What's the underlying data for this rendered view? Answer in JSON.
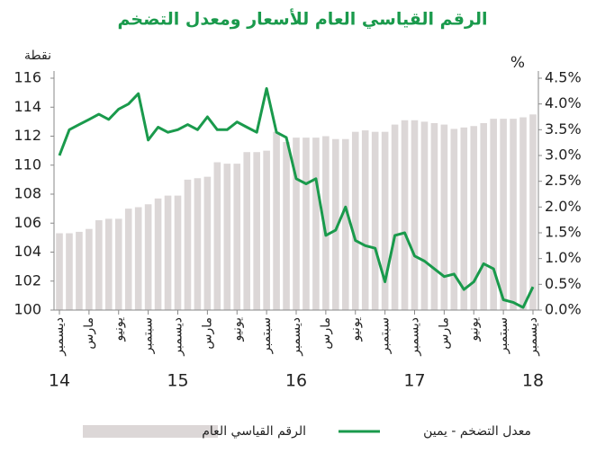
{
  "chart_data": {
    "type": "combo",
    "title": "الرقم القياسي العام للأسعار ومعدل التضخم",
    "y_axis_label": "نقطة",
    "y2_axis_label": "%",
    "categories": [
      "ديسمبر",
      null,
      null,
      "مارس",
      null,
      null,
      "يونيو",
      null,
      null,
      "سبتمبر",
      null,
      null,
      "ديسمبر",
      null,
      null,
      "مارس",
      null,
      null,
      "يونيو",
      null,
      null,
      "سبتمبر",
      null,
      null,
      "ديسمبر",
      null,
      null,
      "مارس",
      null,
      null,
      "يونيو",
      null,
      null,
      "سبتمبر",
      null,
      null,
      "ديسمبر",
      null,
      null,
      "مارس",
      null,
      null,
      "يونيو",
      null,
      null,
      "سبتمبر",
      null,
      null,
      "ديسمبر"
    ],
    "year_labels": [
      "14",
      null,
      null,
      null,
      null,
      null,
      null,
      null,
      null,
      null,
      null,
      null,
      "15",
      null,
      null,
      null,
      null,
      null,
      null,
      null,
      null,
      null,
      null,
      null,
      "16",
      null,
      null,
      null,
      null,
      null,
      null,
      null,
      null,
      null,
      null,
      null,
      "17",
      null,
      null,
      null,
      null,
      null,
      null,
      null,
      null,
      null,
      null,
      null,
      "18"
    ],
    "series": [
      {
        "name": "الرقم القياسي العام",
        "type": "bar",
        "color": "#dcd7d7",
        "values": [
          105.3,
          105.3,
          105.4,
          105.6,
          106.2,
          106.3,
          106.3,
          107.0,
          107.1,
          107.3,
          107.7,
          107.9,
          107.9,
          109.0,
          109.1,
          109.2,
          110.2,
          110.1,
          110.1,
          110.9,
          110.9,
          111.0,
          112.3,
          111.6,
          111.9,
          111.9,
          111.9,
          112.0,
          111.8,
          111.8,
          112.3,
          112.4,
          112.3,
          112.3,
          112.8,
          113.1,
          113.1,
          113.0,
          112.9,
          112.8,
          112.5,
          112.6,
          112.7,
          112.9,
          113.2,
          113.2,
          113.2,
          113.3,
          113.5
        ]
      },
      {
        "name": "معدل التضخم - يمين",
        "type": "line",
        "axis": "y2",
        "color": "#1a9a4c",
        "values": [
          3.0,
          3.5,
          3.6,
          3.7,
          3.8,
          3.7,
          3.9,
          4.0,
          4.2,
          3.3,
          3.55,
          3.45,
          3.5,
          3.6,
          3.5,
          3.75,
          3.5,
          3.5,
          3.65,
          3.55,
          3.45,
          4.3,
          3.45,
          3.35,
          2.55,
          2.45,
          2.55,
          1.45,
          1.55,
          2.0,
          1.35,
          1.25,
          1.2,
          0.55,
          1.45,
          1.5,
          1.05,
          0.95,
          0.8,
          0.65,
          0.7,
          0.4,
          0.55,
          0.9,
          0.8,
          0.2,
          0.15,
          0.05,
          0.45
        ]
      }
    ],
    "ylim": [
      100,
      116
    ],
    "yticks": [
      100,
      102,
      104,
      106,
      108,
      110,
      112,
      114,
      116
    ],
    "y2lim": [
      0,
      4.5
    ],
    "y2ticks": [
      {
        "value": 0,
        "label": "0.0%"
      },
      {
        "value": 0.5,
        "label": "0.5%"
      },
      {
        "value": 1,
        "label": "1.0%"
      },
      {
        "value": 1.5,
        "label": "1.5%"
      },
      {
        "value": 2,
        "label": "2.0%"
      },
      {
        "value": 2.5,
        "label": "2.5%"
      },
      {
        "value": 3,
        "label": "3.0%"
      },
      {
        "value": 3.5,
        "label": "3.5%"
      },
      {
        "value": 4,
        "label": "4.0%"
      },
      {
        "value": 4.5,
        "label": "4.5%"
      }
    ]
  }
}
